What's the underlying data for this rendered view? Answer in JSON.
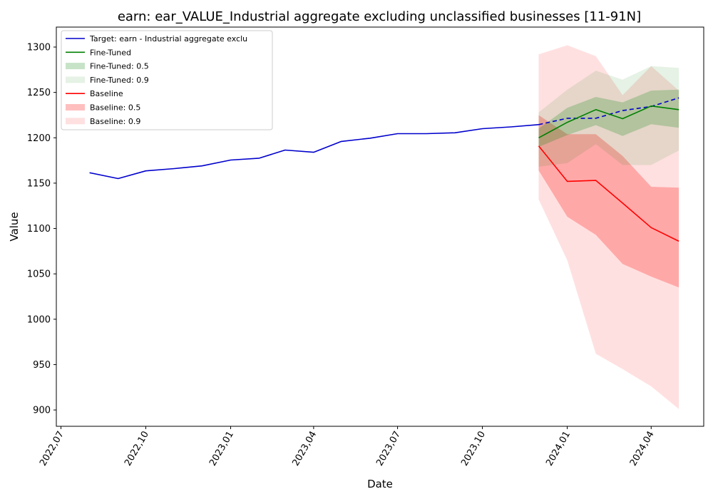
{
  "chart_data": {
    "type": "line",
    "title": "earn: ear_VALUE_Industrial aggregate excluding unclassified businesses [11-91N]",
    "xlabel": "Date",
    "ylabel": "Value",
    "ylim": [
      882,
      1322
    ],
    "xlim": [
      "2022-06-26",
      "2024-05-28"
    ],
    "x_ticks": [
      {
        "date": "2022-07-01",
        "label": "2022,07"
      },
      {
        "date": "2022-10-01",
        "label": "2022,10"
      },
      {
        "date": "2023-01-01",
        "label": "2023,01"
      },
      {
        "date": "2023-04-01",
        "label": "2023,04"
      },
      {
        "date": "2023-07-01",
        "label": "2023,07"
      },
      {
        "date": "2023-10-01",
        "label": "2023,10"
      },
      {
        "date": "2024-01-01",
        "label": "2024,01"
      },
      {
        "date": "2024-04-01",
        "label": "2024,04"
      }
    ],
    "y_ticks": [
      900,
      950,
      1000,
      1050,
      1100,
      1150,
      1200,
      1250,
      1300
    ],
    "grid": false,
    "legend_position": "top-left",
    "colors": {
      "target": "#0000cc",
      "fine_tuned": "#008000",
      "baseline": "#ff0000"
    },
    "target_history": {
      "name": "Target: earn - Industrial aggregate exclu",
      "x": [
        "2022-08-01",
        "2022-09-01",
        "2022-10-01",
        "2022-11-01",
        "2022-12-01",
        "2023-01-01",
        "2023-02-01",
        "2023-03-01",
        "2023-04-01",
        "2023-05-01",
        "2023-06-01",
        "2023-07-01",
        "2023-08-01",
        "2023-09-01",
        "2023-10-01",
        "2023-11-01",
        "2023-12-01"
      ],
      "y": [
        1161.5,
        1155,
        1163.5,
        1166,
        1169,
        1175.5,
        1177.5,
        1186.5,
        1184,
        1196,
        1199.5,
        1204.5,
        1204.5,
        1205.5,
        1210,
        1212,
        1214.5
      ]
    },
    "target_future": {
      "x": [
        "2023-12-01",
        "2024-01-01",
        "2024-02-01",
        "2024-03-01",
        "2024-04-01",
        "2024-05-01"
      ],
      "y": [
        1214.5,
        1221.5,
        1221.5,
        1230,
        1234.5,
        1244
      ]
    },
    "forecast_x": [
      "2023-12-01",
      "2024-01-01",
      "2024-02-01",
      "2024-03-01",
      "2024-04-01",
      "2024-05-01"
    ],
    "fine_tuned": {
      "name": "Fine-Tuned",
      "median": [
        1200,
        1217,
        1231,
        1221,
        1235,
        1231
      ],
      "band_05": {
        "name": "Fine-Tuned: 0.5",
        "lower": [
          1190,
          1203,
          1214,
          1202,
          1215,
          1211
        ],
        "upper": [
          1210,
          1233,
          1245,
          1239,
          1252,
          1253
        ]
      },
      "band_09": {
        "name": "Fine-Tuned: 0.9",
        "lower": [
          1168,
          1172,
          1193,
          1170,
          1170,
          1186
        ],
        "upper": [
          1228,
          1253,
          1274,
          1264,
          1279,
          1277
        ]
      }
    },
    "baseline": {
      "name": "Baseline",
      "median": [
        1191,
        1152,
        1153,
        1128,
        1101,
        1086
      ],
      "band_05": {
        "name": "Baseline: 0.5",
        "lower": [
          1164,
          1113,
          1093,
          1061,
          1047,
          1035
        ],
        "upper": [
          1225,
          1204,
          1204,
          1180,
          1146,
          1145
        ]
      },
      "band_09": {
        "name": "Baseline: 0.9",
        "lower": [
          1132,
          1065,
          962,
          945,
          926,
          901
        ],
        "upper": [
          1292,
          1302,
          1290,
          1247,
          1279,
          1252
        ]
      }
    }
  }
}
